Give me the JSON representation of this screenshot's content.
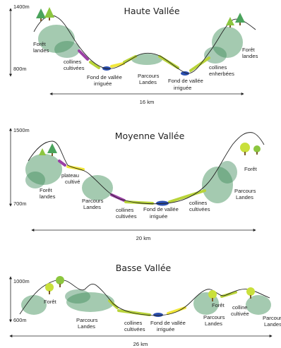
{
  "panels": [
    {
      "title": "Haute Vallée",
      "alt_top": "1400m",
      "alt_bottom": "800m",
      "distance": "16 km",
      "labels": {
        "foret_left": [
          "Forêt",
          "landes"
        ],
        "collines_cultivees": [
          "collines",
          "cultivées"
        ],
        "fond_left": [
          "Fond de vallée",
          "irriguée"
        ],
        "parcours": [
          "Parcours",
          "Landes"
        ],
        "fond_right": [
          "Fond de vallée",
          "irriguée"
        ],
        "collines_enherbees": [
          "collines",
          "enherbées"
        ],
        "foret_right": [
          "Forêt",
          "landes"
        ]
      }
    },
    {
      "title": "Moyenne Vallée",
      "alt_top": "1500m",
      "alt_bottom": "700m",
      "distance": "20 km",
      "labels": {
        "foret_left": [
          "Forêt",
          "landes"
        ],
        "plateau": [
          "plateau",
          "cultivé"
        ],
        "parcours_left": [
          "Parcours",
          "Landes"
        ],
        "collines_cultivees": [
          "collines",
          "cultivées"
        ],
        "fond": [
          "Fond de vallée",
          "irriguée"
        ],
        "collines_cultivees2": [
          "collines",
          "cultivées"
        ],
        "parcours_right": [
          "Parcours",
          "Landes"
        ],
        "foret_right": [
          "Forêt"
        ]
      }
    },
    {
      "title": "Basse Vallée",
      "alt_top": "1000m",
      "alt_bottom": "600m",
      "distance": "26 km",
      "labels": {
        "foret_left": [
          "Forêt"
        ],
        "parcours_left": [
          "Parcours",
          "Landes"
        ],
        "collines_cultivees": [
          "collines",
          "cultivées"
        ],
        "fond": [
          "Fond de vallée",
          "irriguée"
        ],
        "parcours_mid": [
          "Parcours",
          "Landes"
        ],
        "foret_mid": [
          "Forêt"
        ],
        "colline_cultivee": [
          "colline",
          "cultivée"
        ],
        "parcours_right": [
          "Parcours",
          "Landes"
        ]
      }
    }
  ],
  "colors": {
    "forest": "#5a9e6f",
    "cultivated": "#b9d43a",
    "plateau": "#f1e73b",
    "cultivated_hills": "#9b3fa5",
    "irrigated": "#2a4fb0"
  }
}
